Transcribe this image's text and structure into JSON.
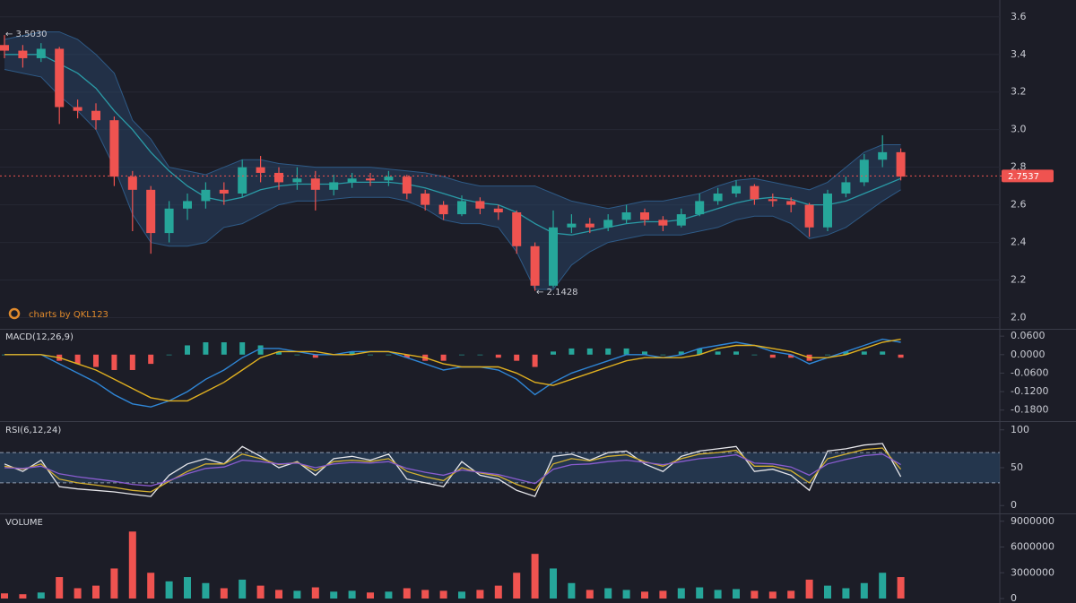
{
  "chart_data": [
    {
      "type": "candlestick",
      "candles": [
        [
          3.45,
          3.503,
          3.38,
          3.42
        ],
        [
          3.42,
          3.45,
          3.33,
          3.38
        ],
        [
          3.38,
          3.46,
          3.36,
          3.43
        ],
        [
          3.43,
          3.44,
          3.03,
          3.12
        ],
        [
          3.12,
          3.16,
          3.06,
          3.1
        ],
        [
          3.1,
          3.14,
          3.0,
          3.05
        ],
        [
          3.05,
          3.07,
          2.7,
          2.75
        ],
        [
          2.75,
          2.78,
          2.46,
          2.68
        ],
        [
          2.68,
          2.7,
          2.34,
          2.45
        ],
        [
          2.45,
          2.62,
          2.4,
          2.58
        ],
        [
          2.58,
          2.66,
          2.52,
          2.62
        ],
        [
          2.62,
          2.72,
          2.58,
          2.68
        ],
        [
          2.68,
          2.72,
          2.6,
          2.66
        ],
        [
          2.66,
          2.84,
          2.64,
          2.8
        ],
        [
          2.8,
          2.86,
          2.72,
          2.77
        ],
        [
          2.77,
          2.8,
          2.68,
          2.72
        ],
        [
          2.72,
          2.8,
          2.68,
          2.74
        ],
        [
          2.74,
          2.78,
          2.57,
          2.68
        ],
        [
          2.68,
          2.76,
          2.65,
          2.72
        ],
        [
          2.72,
          2.77,
          2.69,
          2.74
        ],
        [
          2.74,
          2.77,
          2.7,
          2.73
        ],
        [
          2.73,
          2.78,
          2.7,
          2.75
        ],
        [
          2.75,
          2.76,
          2.63,
          2.66
        ],
        [
          2.66,
          2.68,
          2.57,
          2.6
        ],
        [
          2.6,
          2.62,
          2.52,
          2.55
        ],
        [
          2.55,
          2.65,
          2.54,
          2.62
        ],
        [
          2.62,
          2.64,
          2.55,
          2.58
        ],
        [
          2.58,
          2.6,
          2.52,
          2.56
        ],
        [
          2.56,
          2.57,
          2.34,
          2.38
        ],
        [
          2.38,
          2.4,
          2.143,
          2.17
        ],
        [
          2.17,
          2.57,
          2.16,
          2.48
        ],
        [
          2.48,
          2.55,
          2.45,
          2.5
        ],
        [
          2.5,
          2.53,
          2.45,
          2.48
        ],
        [
          2.48,
          2.55,
          2.46,
          2.52
        ],
        [
          2.52,
          2.6,
          2.5,
          2.56
        ],
        [
          2.56,
          2.58,
          2.49,
          2.52
        ],
        [
          2.52,
          2.54,
          2.46,
          2.49
        ],
        [
          2.49,
          2.58,
          2.48,
          2.55
        ],
        [
          2.55,
          2.66,
          2.54,
          2.62
        ],
        [
          2.62,
          2.69,
          2.6,
          2.66
        ],
        [
          2.66,
          2.73,
          2.64,
          2.7
        ],
        [
          2.7,
          2.71,
          2.6,
          2.63
        ],
        [
          2.63,
          2.66,
          2.59,
          2.62
        ],
        [
          2.62,
          2.64,
          2.56,
          2.6
        ],
        [
          2.6,
          2.61,
          2.43,
          2.48
        ],
        [
          2.48,
          2.68,
          2.46,
          2.66
        ],
        [
          2.66,
          2.75,
          2.64,
          2.72
        ],
        [
          2.72,
          2.87,
          2.7,
          2.84
        ],
        [
          2.84,
          2.97,
          2.8,
          2.88
        ],
        [
          2.88,
          2.9,
          2.73,
          2.75
        ]
      ],
      "up_color": "#26a69a",
      "down_color": "#ef5350",
      "bollinger": {
        "color": "#2a9aa6",
        "fill": "#2b4a6e",
        "upper": [
          3.48,
          3.5,
          3.52,
          3.52,
          3.48,
          3.4,
          3.3,
          3.05,
          2.95,
          2.8,
          2.78,
          2.76,
          2.8,
          2.84,
          2.84,
          2.82,
          2.81,
          2.8,
          2.8,
          2.8,
          2.8,
          2.79,
          2.78,
          2.77,
          2.75,
          2.72,
          2.7,
          2.7,
          2.7,
          2.7,
          2.66,
          2.62,
          2.6,
          2.58,
          2.6,
          2.62,
          2.62,
          2.64,
          2.66,
          2.7,
          2.73,
          2.74,
          2.72,
          2.7,
          2.68,
          2.72,
          2.8,
          2.88,
          2.92,
          2.92
        ],
        "middle": [
          3.4,
          3.4,
          3.4,
          3.35,
          3.3,
          3.22,
          3.1,
          3.0,
          2.88,
          2.78,
          2.7,
          2.64,
          2.62,
          2.64,
          2.68,
          2.7,
          2.71,
          2.71,
          2.71,
          2.72,
          2.72,
          2.72,
          2.71,
          2.69,
          2.66,
          2.63,
          2.61,
          2.6,
          2.56,
          2.5,
          2.45,
          2.44,
          2.46,
          2.48,
          2.5,
          2.51,
          2.51,
          2.52,
          2.55,
          2.58,
          2.61,
          2.63,
          2.64,
          2.63,
          2.6,
          2.6,
          2.62,
          2.66,
          2.7,
          2.74
        ],
        "lower": [
          3.32,
          3.3,
          3.28,
          3.18,
          3.1,
          3.0,
          2.8,
          2.55,
          2.4,
          2.38,
          2.38,
          2.4,
          2.48,
          2.5,
          2.55,
          2.6,
          2.62,
          2.62,
          2.63,
          2.64,
          2.64,
          2.64,
          2.62,
          2.58,
          2.52,
          2.5,
          2.5,
          2.48,
          2.35,
          2.15,
          2.15,
          2.28,
          2.35,
          2.4,
          2.42,
          2.44,
          2.44,
          2.44,
          2.46,
          2.48,
          2.52,
          2.54,
          2.54,
          2.5,
          2.42,
          2.44,
          2.48,
          2.55,
          2.62,
          2.68
        ]
      },
      "last_price": {
        "value": 2.7537,
        "label": "2.7537"
      },
      "annotations": [
        "← 3.5030",
        "← 2.1428"
      ],
      "watermark": "charts by QKL123",
      "ylim": [
        1.95,
        3.68
      ],
      "yticks": [
        {
          "value": 2,
          "label": "2.0"
        },
        2.2,
        2.4,
        2.6,
        2.8,
        {
          "value": 3,
          "label": "3.0"
        },
        3.2,
        3.4,
        3.6
      ],
      "grid": true
    },
    {
      "type": "macd",
      "title": "MACD(12,26,9)",
      "series": [
        {
          "color": "#2f86d6",
          "values": [
            0.0,
            0.0,
            0.0,
            -0.03,
            -0.06,
            -0.09,
            -0.13,
            -0.16,
            -0.17,
            -0.15,
            -0.12,
            -0.08,
            -0.05,
            -0.01,
            0.02,
            0.02,
            0.01,
            0.0,
            0.0,
            0.01,
            0.01,
            0.01,
            -0.01,
            -0.03,
            -0.05,
            -0.04,
            -0.04,
            -0.05,
            -0.08,
            -0.13,
            -0.09,
            -0.06,
            -0.04,
            -0.02,
            0.0,
            0.0,
            -0.01,
            0.0,
            0.02,
            0.03,
            0.04,
            0.03,
            0.01,
            0.0,
            -0.03,
            -0.01,
            0.01,
            0.03,
            0.05,
            0.04
          ]
        },
        {
          "color": "#e0b020",
          "values": [
            0.0,
            0.0,
            0.0,
            -0.01,
            -0.03,
            -0.05,
            -0.08,
            -0.11,
            -0.14,
            -0.15,
            -0.15,
            -0.12,
            -0.09,
            -0.05,
            -0.01,
            0.01,
            0.01,
            0.01,
            0.0,
            0.0,
            0.01,
            0.01,
            0.0,
            -0.01,
            -0.03,
            -0.04,
            -0.04,
            -0.04,
            -0.06,
            -0.09,
            -0.1,
            -0.08,
            -0.06,
            -0.04,
            -0.02,
            -0.01,
            -0.01,
            -0.01,
            0.0,
            0.02,
            0.03,
            0.03,
            0.02,
            0.01,
            -0.01,
            -0.01,
            0.0,
            0.02,
            0.04,
            0.05
          ]
        }
      ],
      "histogram": {
        "up_color": "#26a69a",
        "down_color": "#ef5350",
        "values": [
          0,
          0,
          0,
          -0.02,
          -0.03,
          -0.04,
          -0.05,
          -0.05,
          -0.03,
          0,
          0.03,
          0.04,
          0.04,
          0.04,
          0.03,
          0.01,
          0,
          -0.01,
          0,
          0.01,
          0,
          0,
          -0.01,
          -0.02,
          -0.02,
          0,
          0,
          -0.01,
          -0.02,
          -0.04,
          0.01,
          0.02,
          0.02,
          0.02,
          0.02,
          0.01,
          0,
          0.01,
          0.02,
          0.01,
          0.01,
          0,
          -0.01,
          -0.01,
          -0.02,
          0,
          0.01,
          0.01,
          0.01,
          -0.01
        ]
      },
      "ylim": [
        -0.21,
        0.075
      ],
      "yticks": [
        {
          "value": 0.06,
          "label": "0.0600"
        },
        {
          "value": 0,
          "label": "0.0000"
        },
        {
          "value": -0.06,
          "label": "-0.0600"
        },
        {
          "value": -0.12,
          "label": "-0.1200"
        },
        {
          "value": -0.18,
          "label": "-0.1800"
        }
      ]
    },
    {
      "type": "line",
      "title": "RSI(6,12,24)",
      "series": [
        {
          "color": "#e6e6ea",
          "values": [
            55,
            45,
            60,
            25,
            22,
            20,
            18,
            15,
            12,
            40,
            55,
            62,
            55,
            78,
            65,
            50,
            58,
            40,
            62,
            65,
            60,
            68,
            35,
            30,
            25,
            58,
            40,
            35,
            20,
            12,
            65,
            68,
            60,
            70,
            72,
            55,
            45,
            65,
            72,
            75,
            78,
            45,
            48,
            40,
            20,
            72,
            75,
            80,
            82,
            38
          ]
        },
        {
          "color": "#d4b030",
          "values": [
            52,
            48,
            55,
            35,
            30,
            27,
            24,
            20,
            18,
            32,
            45,
            55,
            55,
            68,
            62,
            54,
            57,
            46,
            58,
            60,
            58,
            62,
            45,
            38,
            33,
            50,
            43,
            39,
            28,
            20,
            55,
            62,
            59,
            65,
            67,
            58,
            52,
            62,
            68,
            70,
            73,
            52,
            52,
            46,
            30,
            62,
            68,
            74,
            76,
            48
          ]
        },
        {
          "color": "#8a5cd0",
          "values": [
            50,
            49,
            52,
            42,
            38,
            35,
            32,
            28,
            26,
            33,
            42,
            49,
            51,
            60,
            58,
            55,
            56,
            50,
            55,
            57,
            56,
            58,
            49,
            44,
            40,
            47,
            44,
            41,
            35,
            29,
            48,
            54,
            55,
            58,
            60,
            57,
            54,
            58,
            62,
            64,
            67,
            56,
            55,
            51,
            40,
            55,
            61,
            66,
            68,
            54
          ]
        }
      ],
      "band": [
        30,
        70
      ],
      "ylim": [
        -8,
        108
      ],
      "yticks": [
        0,
        50,
        100
      ]
    },
    {
      "type": "bar",
      "title": "VOLUME",
      "values": [
        600000,
        500000,
        700000,
        2500000,
        1200000,
        1500000,
        3500000,
        7800000,
        3000000,
        2000000,
        2500000,
        1800000,
        1200000,
        2200000,
        1500000,
        1000000,
        900000,
        1300000,
        800000,
        900000,
        700000,
        800000,
        1200000,
        1000000,
        900000,
        800000,
        1000000,
        1500000,
        3000000,
        5200000,
        3500000,
        1800000,
        1000000,
        1200000,
        1000000,
        800000,
        900000,
        1200000,
        1300000,
        1000000,
        1100000,
        900000,
        800000,
        900000,
        2200000,
        1500000,
        1200000,
        1800000,
        3000000,
        2500000
      ],
      "up_color": "#26a69a",
      "down_color": "#ef5350",
      "ylim": [
        0,
        9600000
      ],
      "yticks": [
        0,
        3000000,
        6000000,
        9000000
      ]
    }
  ]
}
